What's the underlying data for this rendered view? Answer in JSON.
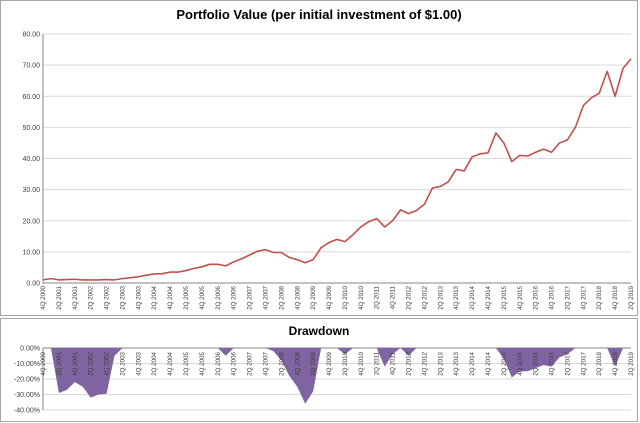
{
  "colors": {
    "line": "#c0504d",
    "area": "#8064a2",
    "grid": "#d9d9d9",
    "axis": "#868686"
  },
  "chart_data": [
    {
      "type": "line",
      "title": "Portfolio Value (per initial investment of $1.00)",
      "xlabel": "",
      "ylabel": "",
      "ylim": [
        0,
        80
      ],
      "grid": true,
      "y_ticks": [
        "0.00",
        "10.00",
        "20.00",
        "30.00",
        "40.00",
        "50.00",
        "60.00",
        "70.00",
        "80.00"
      ],
      "x_ticks": [
        "4Q 2000",
        "2Q 2001",
        "4Q 2001",
        "2Q 2002",
        "4Q 2002",
        "2Q 2003",
        "4Q 2003",
        "2Q 2004",
        "4Q 2004",
        "2Q 2005",
        "4Q 2005",
        "2Q 2006",
        "4Q 2006",
        "2Q 2007",
        "4Q 2007",
        "2Q 2008",
        "4Q 2008",
        "2Q 2009",
        "4Q 2009",
        "2Q 2010",
        "4Q 2010",
        "2Q 2011",
        "4Q 2011",
        "2Q 2012",
        "4Q 2012",
        "2Q 2013",
        "4Q 2013",
        "2Q 2014",
        "4Q 2014",
        "2Q 2015",
        "4Q 2015",
        "2Q 2016",
        "4Q 2016",
        "2Q 2017",
        "4Q 2017",
        "2Q 2018",
        "4Q 2018",
        "2Q 2019"
      ],
      "values": [
        1.0,
        1.4,
        1.0,
        1.1,
        1.2,
        1.0,
        1.0,
        1.0,
        1.1,
        1.0,
        1.4,
        1.7,
        2.0,
        2.5,
        2.9,
        3.0,
        3.5,
        3.5,
        4.0,
        4.7,
        5.2,
        6.0,
        6.0,
        5.5,
        6.8,
        7.8,
        9.0,
        10.2,
        10.7,
        9.8,
        9.8,
        8.2,
        7.5,
        6.5,
        7.5,
        11.4,
        13.0,
        14.0,
        13.3,
        15.5,
        18.0,
        19.7,
        20.7,
        18.0,
        20.0,
        23.5,
        22.3,
        23.3,
        25.3,
        30.5,
        31.0,
        32.5,
        36.5,
        36.0,
        40.5,
        41.5,
        41.8,
        48.2,
        45.0,
        39.0,
        41.0,
        40.8,
        42.0,
        43.0,
        42.0,
        45.0,
        46.0,
        50.0,
        57.0,
        59.5,
        61.0,
        68.0,
        60.0,
        69.0,
        72.0
      ]
    },
    {
      "type": "area",
      "title": "Drawdown",
      "xlabel": "",
      "ylabel": "",
      "ylim": [
        -40,
        0
      ],
      "grid": true,
      "y_ticks": [
        "0.00%",
        "-10.00%",
        "-20.00%",
        "-30.00%",
        "-40.00%"
      ],
      "x_ticks": [
        "4Q 2000",
        "2Q 2001",
        "4Q 2001",
        "2Q 2002",
        "4Q 2002",
        "2Q 2003",
        "4Q 2003",
        "2Q 2004",
        "4Q 2004",
        "2Q 2005",
        "4Q 2005",
        "2Q 2006",
        "4Q 2006",
        "2Q 2007",
        "4Q 2007",
        "2Q 2008",
        "4Q 2008",
        "2Q 2009",
        "4Q 2009",
        "2Q 2010",
        "4Q 2010",
        "2Q 2011",
        "4Q 2011",
        "2Q 2012",
        "4Q 2012",
        "2Q 2013",
        "4Q 2013",
        "2Q 2014",
        "4Q 2014",
        "2Q 2015",
        "4Q 2015",
        "2Q 2016",
        "4Q 2016",
        "2Q 2017",
        "4Q 2017",
        "2Q 2018",
        "4Q 2018",
        "2Q 2019"
      ],
      "values": [
        0,
        0,
        -29,
        -27,
        -22,
        -25,
        -32,
        -30,
        -29.5,
        -5,
        0,
        0,
        0,
        0,
        0,
        0,
        0,
        0,
        0,
        0,
        0,
        0,
        0,
        -5,
        0,
        0,
        0,
        0,
        0,
        -2,
        -8,
        -18,
        -25,
        -36,
        -28,
        0,
        0,
        0,
        -4,
        0,
        0,
        0,
        0,
        -12,
        -4,
        0,
        -5,
        0,
        0,
        0,
        0,
        0,
        0,
        0,
        0,
        0,
        0,
        0,
        -7,
        -19,
        -15,
        -15,
        -13,
        -11,
        -12,
        -6,
        -4,
        0,
        0,
        0,
        0,
        0,
        -12,
        0,
        0
      ]
    }
  ]
}
